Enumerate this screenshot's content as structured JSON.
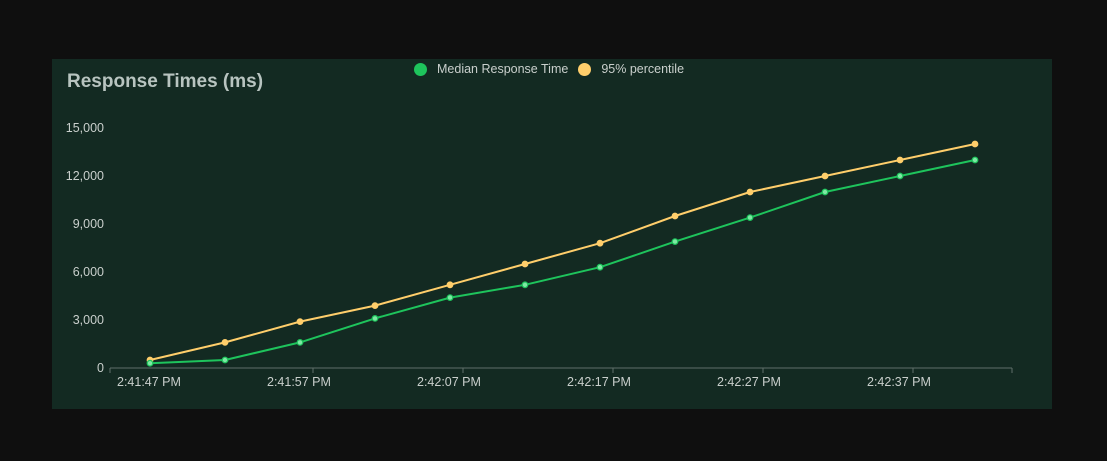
{
  "chart_data": {
    "type": "line",
    "title": "Response Times (ms)",
    "xlabel": "",
    "ylabel": "",
    "x": [
      "2:41:47 PM",
      "2:41:52 PM",
      "2:41:57 PM",
      "2:42:02 PM",
      "2:42:07 PM",
      "2:42:12 PM",
      "2:42:17 PM",
      "2:42:22 PM",
      "2:42:27 PM",
      "2:42:32 PM",
      "2:42:37 PM",
      "2:42:42 PM"
    ],
    "x_tick_labels": [
      "2:41:47 PM",
      "2:41:57 PM",
      "2:42:07 PM",
      "2:42:17 PM",
      "2:42:27 PM",
      "2:42:37 PM"
    ],
    "ylim": [
      0,
      15000
    ],
    "y_ticks": [
      0,
      3000,
      6000,
      9000,
      12000,
      15000
    ],
    "y_tick_labels": [
      "0",
      "3,000",
      "6,000",
      "9,000",
      "12,000",
      "15,000"
    ],
    "series": [
      {
        "name": "Median Response Time",
        "color": "#1ec45c",
        "values": [
          300,
          500,
          1600,
          3100,
          4400,
          5200,
          6300,
          7900,
          9400,
          11000,
          12000,
          13000
        ]
      },
      {
        "name": "95% percentile",
        "color": "#ffce6b",
        "values": [
          500,
          1600,
          2900,
          3900,
          5200,
          6500,
          7800,
          9500,
          11000,
          12000,
          13000,
          14000
        ]
      }
    ],
    "grid": false,
    "legend": "top-center"
  },
  "colors": {
    "background": "#0f0f0f",
    "panel": "#132a22",
    "axis": "#5f6f69"
  }
}
